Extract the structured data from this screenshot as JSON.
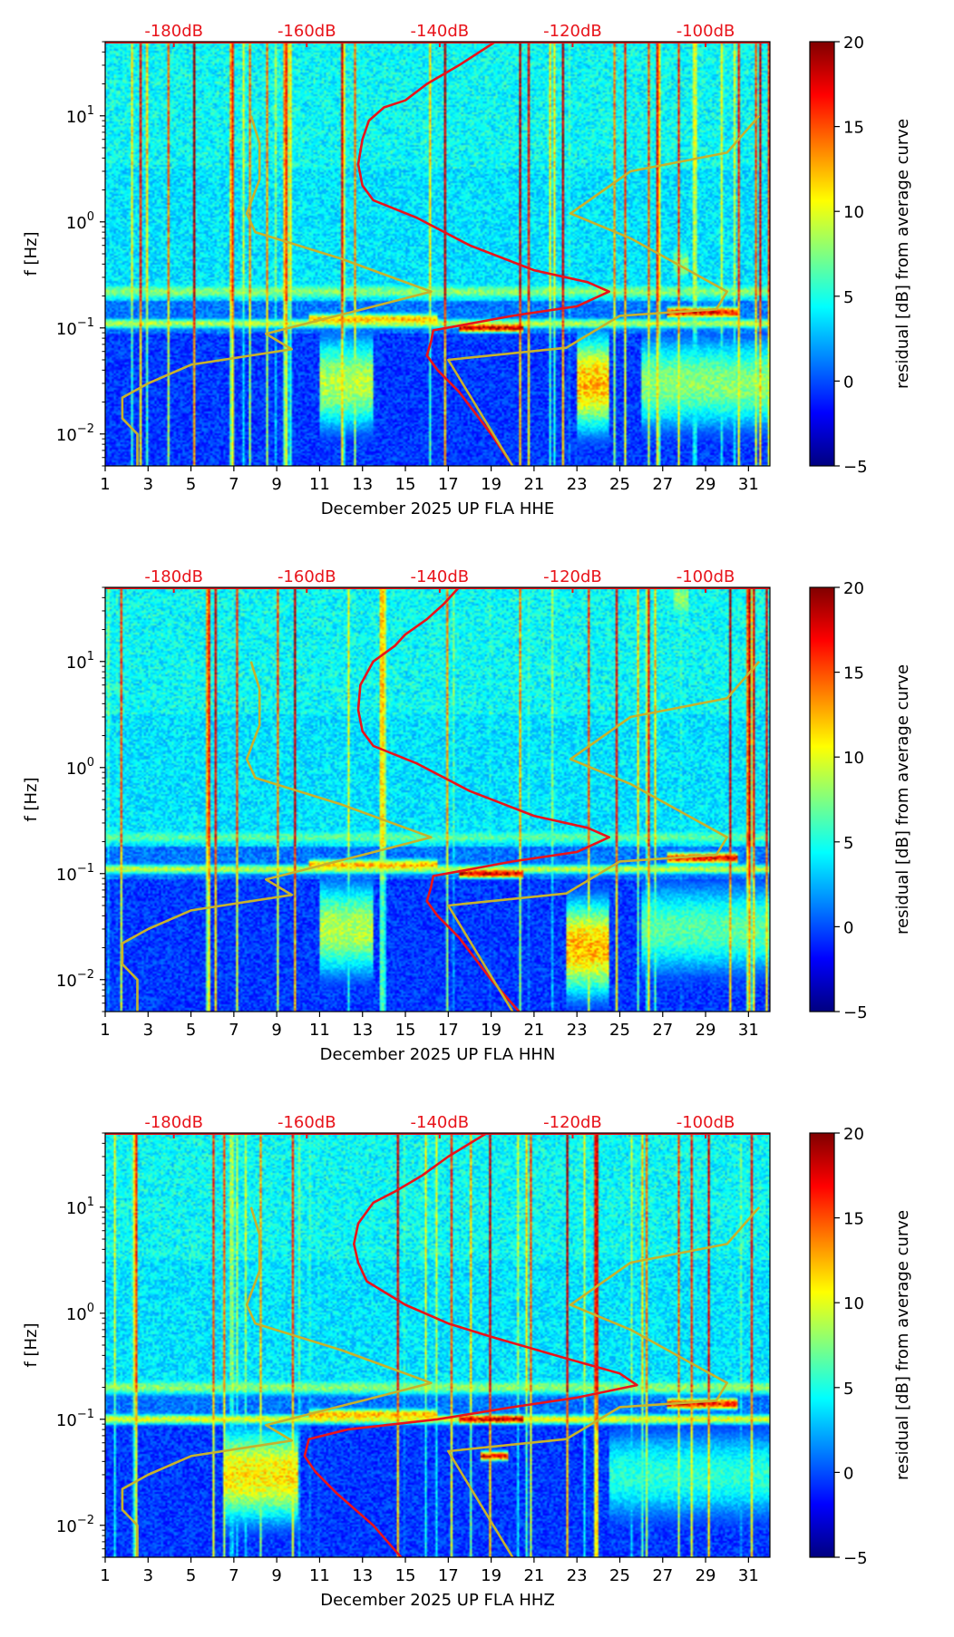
{
  "chart_data": [
    {
      "type": "heatmap",
      "title": "",
      "xlabel": "December 2025 UP FLA  HHE",
      "ylabel": "f [Hz]",
      "xlim": [
        1,
        32
      ],
      "ylim": [
        0.005,
        50
      ],
      "yscale": "log",
      "xticks": [
        1,
        3,
        5,
        7,
        9,
        11,
        13,
        15,
        17,
        19,
        21,
        23,
        25,
        27,
        29,
        31
      ],
      "yticks": [
        {
          "value": 0.01,
          "base": "10",
          "exp": "−2"
        },
        {
          "value": 0.1,
          "base": "10",
          "exp": "−1"
        },
        {
          "value": 1,
          "base": "10",
          "exp": "0"
        },
        {
          "value": 10,
          "base": "10",
          "exp": "1"
        }
      ],
      "db_scale": {
        "labels": [
          "-180dB",
          "-160dB",
          "-140dB",
          "-120dB",
          "-100dB"
        ],
        "x": [
          4.2,
          10.4,
          16.6,
          22.8,
          29.0
        ]
      },
      "colorbar": {
        "label": "residual [dB] from average curve",
        "min": -5,
        "max": 20,
        "ticks": [
          "20",
          "15",
          "10",
          "5",
          "0",
          "−5"
        ]
      },
      "bands": [
        {
          "f": 0.22,
          "width": 0.1,
          "start": 1,
          "end": 32,
          "amp": 0.55
        },
        {
          "f": 0.11,
          "width": 0.06,
          "start": 1,
          "end": 32,
          "amp": 0.6
        },
        {
          "f": 0.1,
          "width": 0.05,
          "start": 17.5,
          "end": 20.5,
          "amp": 1.0
        },
        {
          "f": 0.14,
          "width": 0.06,
          "start": 27.2,
          "end": 30.5,
          "amp": 0.95
        },
        {
          "f": 0.12,
          "width": 0.07,
          "start": 10.5,
          "end": 16.5,
          "amp": 0.75
        },
        {
          "f": 0.03,
          "width": 0.5,
          "start": 23,
          "end": 24.5,
          "amp": 0.75
        },
        {
          "f": 0.03,
          "width": 0.5,
          "start": 11,
          "end": 13.5,
          "amp": 0.6
        },
        {
          "f": 0.03,
          "width": 0.5,
          "start": 26,
          "end": 32,
          "amp": 0.55
        },
        {
          "f": 0.4,
          "width": 0.25,
          "start": 27.5,
          "end": 28.2,
          "amp": 0.55
        }
      ],
      "series": [
        {
          "name": "median PSD",
          "color": "#e8141b",
          "points": [
            [
              19.2,
              50
            ],
            [
              17.5,
              30
            ],
            [
              16,
              20
            ],
            [
              15,
              14
            ],
            [
              14,
              12
            ],
            [
              13.3,
              9
            ],
            [
              13,
              6
            ],
            [
              12.8,
              3.5
            ],
            [
              13,
              2.2
            ],
            [
              13.5,
              1.6
            ],
            [
              15.5,
              1.1
            ],
            [
              18,
              0.6
            ],
            [
              21,
              0.35
            ],
            [
              23.5,
              0.27
            ],
            [
              24.5,
              0.22
            ],
            [
              23,
              0.16
            ],
            [
              20,
              0.13
            ],
            [
              17.5,
              0.105
            ],
            [
              16.3,
              0.095
            ],
            [
              16.2,
              0.075
            ],
            [
              16,
              0.055
            ],
            [
              16.5,
              0.04
            ],
            [
              17.5,
              0.025
            ],
            [
              19,
              0.01
            ],
            [
              20,
              0.005
            ]
          ]
        },
        {
          "name": "low noise model",
          "color": "#c6b22d",
          "points": [
            [
              7.8,
              10
            ],
            [
              8.2,
              5.5
            ],
            [
              8.2,
              2.5
            ],
            [
              7.6,
              1.2
            ],
            [
              8,
              0.8
            ],
            [
              12,
              0.45
            ],
            [
              16.2,
              0.22
            ],
            [
              13,
              0.15
            ],
            [
              8.5,
              0.088
            ],
            [
              9.7,
              0.063
            ],
            [
              5,
              0.045
            ],
            [
              3,
              0.03
            ],
            [
              1.8,
              0.022
            ],
            [
              1.8,
              0.014
            ],
            [
              2.5,
              0.01
            ],
            [
              2.5,
              0.005
            ]
          ]
        },
        {
          "name": "high noise model",
          "color": "#c6b22d",
          "points": [
            [
              31.5,
              10
            ],
            [
              30,
              4.5
            ],
            [
              25.5,
              3
            ],
            [
              22.7,
              1.2
            ],
            [
              25.5,
              0.7
            ],
            [
              30,
              0.22
            ],
            [
              29.5,
              0.15
            ],
            [
              25,
              0.13
            ],
            [
              22.5,
              0.065
            ],
            [
              17,
              0.05
            ],
            [
              20,
              0.005
            ]
          ]
        }
      ]
    },
    {
      "type": "heatmap",
      "title": "",
      "xlabel": "December 2025 UP FLA  HHN",
      "ylabel": "f [Hz]",
      "xlim": [
        1,
        32
      ],
      "ylim": [
        0.005,
        50
      ],
      "yscale": "log",
      "xticks": [
        1,
        3,
        5,
        7,
        9,
        11,
        13,
        15,
        17,
        19,
        21,
        23,
        25,
        27,
        29,
        31
      ],
      "yticks": [
        {
          "value": 0.01,
          "base": "10",
          "exp": "−2"
        },
        {
          "value": 0.1,
          "base": "10",
          "exp": "−1"
        },
        {
          "value": 1,
          "base": "10",
          "exp": "0"
        },
        {
          "value": 10,
          "base": "10",
          "exp": "1"
        }
      ],
      "db_scale": {
        "labels": [
          "-180dB",
          "-160dB",
          "-140dB",
          "-120dB",
          "-100dB"
        ],
        "x": [
          4.2,
          10.4,
          16.6,
          22.8,
          29.0
        ]
      },
      "colorbar": {
        "label": "residual [dB] from average curve",
        "min": -5,
        "max": 20,
        "ticks": [
          "20",
          "15",
          "10",
          "5",
          "0",
          "−5"
        ]
      },
      "bands": [
        {
          "f": 0.22,
          "width": 0.1,
          "start": 1,
          "end": 32,
          "amp": 0.5
        },
        {
          "f": 0.11,
          "width": 0.06,
          "start": 1,
          "end": 32,
          "amp": 0.6
        },
        {
          "f": 0.1,
          "width": 0.05,
          "start": 17.5,
          "end": 20.5,
          "amp": 1.0
        },
        {
          "f": 0.14,
          "width": 0.06,
          "start": 27.2,
          "end": 30.5,
          "amp": 0.95
        },
        {
          "f": 0.12,
          "width": 0.07,
          "start": 10.5,
          "end": 16.5,
          "amp": 0.75
        },
        {
          "f": 0.02,
          "width": 0.5,
          "start": 22.5,
          "end": 24.5,
          "amp": 0.75
        },
        {
          "f": 0.03,
          "width": 0.5,
          "start": 11,
          "end": 13.5,
          "amp": 0.6
        },
        {
          "f": 0.03,
          "width": 0.5,
          "start": 26,
          "end": 32,
          "amp": 0.5
        },
        {
          "f": 40,
          "width": 0.3,
          "start": 27.5,
          "end": 28.2,
          "amp": 0.55
        }
      ],
      "series": [
        {
          "name": "median PSD",
          "color": "#e8141b",
          "points": [
            [
              17.5,
              50
            ],
            [
              16.8,
              35
            ],
            [
              16,
              25
            ],
            [
              15,
              18
            ],
            [
              14.5,
              14
            ],
            [
              13.5,
              10
            ],
            [
              12.9,
              6
            ],
            [
              12.8,
              3.5
            ],
            [
              13,
              2.2
            ],
            [
              13.5,
              1.6
            ],
            [
              15.5,
              1.1
            ],
            [
              18,
              0.6
            ],
            [
              21,
              0.35
            ],
            [
              23.5,
              0.27
            ],
            [
              24.5,
              0.22
            ],
            [
              23,
              0.16
            ],
            [
              20,
              0.13
            ],
            [
              17.5,
              0.105
            ],
            [
              16.3,
              0.095
            ],
            [
              16.2,
              0.075
            ],
            [
              16,
              0.055
            ],
            [
              16.5,
              0.04
            ],
            [
              17.5,
              0.025
            ],
            [
              19,
              0.01
            ],
            [
              20.3,
              0.005
            ]
          ]
        },
        {
          "name": "low noise model",
          "color": "#c6b22d",
          "points": [
            [
              7.8,
              10
            ],
            [
              8.2,
              5.5
            ],
            [
              8.2,
              2.5
            ],
            [
              7.6,
              1.2
            ],
            [
              8,
              0.8
            ],
            [
              12,
              0.45
            ],
            [
              16.2,
              0.22
            ],
            [
              13,
              0.15
            ],
            [
              8.5,
              0.088
            ],
            [
              9.7,
              0.063
            ],
            [
              5,
              0.045
            ],
            [
              3,
              0.03
            ],
            [
              1.8,
              0.022
            ],
            [
              1.8,
              0.014
            ],
            [
              2.5,
              0.01
            ],
            [
              2.5,
              0.005
            ]
          ]
        },
        {
          "name": "high noise model",
          "color": "#c6b22d",
          "points": [
            [
              31.5,
              10
            ],
            [
              30,
              4.5
            ],
            [
              25.5,
              3
            ],
            [
              22.7,
              1.2
            ],
            [
              25.5,
              0.7
            ],
            [
              30,
              0.22
            ],
            [
              29.5,
              0.15
            ],
            [
              25,
              0.13
            ],
            [
              22.5,
              0.065
            ],
            [
              17,
              0.05
            ],
            [
              20,
              0.005
            ]
          ]
        }
      ]
    },
    {
      "type": "heatmap",
      "title": "",
      "xlabel": "December 2025 UP FLA  HHZ",
      "ylabel": "f [Hz]",
      "xlim": [
        1,
        32
      ],
      "ylim": [
        0.005,
        50
      ],
      "yscale": "log",
      "xticks": [
        1,
        3,
        5,
        7,
        9,
        11,
        13,
        15,
        17,
        19,
        21,
        23,
        25,
        27,
        29,
        31
      ],
      "yticks": [
        {
          "value": 0.01,
          "base": "10",
          "exp": "−2"
        },
        {
          "value": 0.1,
          "base": "10",
          "exp": "−1"
        },
        {
          "value": 1,
          "base": "10",
          "exp": "0"
        },
        {
          "value": 10,
          "base": "10",
          "exp": "1"
        }
      ],
      "db_scale": {
        "labels": [
          "-180dB",
          "-160dB",
          "-140dB",
          "-120dB",
          "-100dB"
        ],
        "x": [
          4.2,
          10.4,
          16.6,
          22.8,
          29.0
        ]
      },
      "colorbar": {
        "label": "residual [dB] from average curve",
        "min": -5,
        "max": 20,
        "ticks": [
          "20",
          "15",
          "10",
          "5",
          "0",
          "−5"
        ]
      },
      "bands": [
        {
          "f": 0.2,
          "width": 0.1,
          "start": 1,
          "end": 32,
          "amp": 0.55
        },
        {
          "f": 0.1,
          "width": 0.06,
          "start": 1,
          "end": 32,
          "amp": 0.65
        },
        {
          "f": 0.1,
          "width": 0.05,
          "start": 17.5,
          "end": 20.5,
          "amp": 1.0
        },
        {
          "f": 0.045,
          "width": 0.05,
          "start": 18.5,
          "end": 19.8,
          "amp": 0.95
        },
        {
          "f": 0.14,
          "width": 0.06,
          "start": 27.2,
          "end": 30.5,
          "amp": 0.95
        },
        {
          "f": 0.11,
          "width": 0.07,
          "start": 10.5,
          "end": 16.5,
          "amp": 0.75
        },
        {
          "f": 0.03,
          "width": 0.5,
          "start": 6.5,
          "end": 10,
          "amp": 0.7
        },
        {
          "f": 0.03,
          "width": 0.5,
          "start": 24.5,
          "end": 32,
          "amp": 0.45
        }
      ],
      "series": [
        {
          "name": "median PSD",
          "color": "#e8141b",
          "points": [
            [
              18.8,
              50
            ],
            [
              17,
              30
            ],
            [
              15.8,
              20
            ],
            [
              14.5,
              14
            ],
            [
              13.5,
              11
            ],
            [
              12.8,
              7
            ],
            [
              12.6,
              4.5
            ],
            [
              12.8,
              3
            ],
            [
              13.2,
              2
            ],
            [
              15,
              1.2
            ],
            [
              17,
              0.8
            ],
            [
              19,
              0.6
            ],
            [
              22,
              0.4
            ],
            [
              25,
              0.27
            ],
            [
              25.8,
              0.21
            ],
            [
              23,
              0.16
            ],
            [
              20,
              0.13
            ],
            [
              16.5,
              0.1
            ],
            [
              12.3,
              0.08
            ],
            [
              10.5,
              0.065
            ],
            [
              10.3,
              0.045
            ],
            [
              10.8,
              0.032
            ],
            [
              11.8,
              0.02
            ],
            [
              13.5,
              0.01
            ],
            [
              14.8,
              0.005
            ]
          ]
        },
        {
          "name": "low noise model",
          "color": "#c6b22d",
          "points": [
            [
              7.8,
              10
            ],
            [
              8.2,
              5.5
            ],
            [
              8.2,
              2.5
            ],
            [
              7.6,
              1.2
            ],
            [
              8,
              0.8
            ],
            [
              12,
              0.45
            ],
            [
              16.2,
              0.22
            ],
            [
              13,
              0.15
            ],
            [
              8.5,
              0.088
            ],
            [
              9.7,
              0.063
            ],
            [
              5,
              0.045
            ],
            [
              3,
              0.03
            ],
            [
              1.8,
              0.022
            ],
            [
              1.8,
              0.014
            ],
            [
              2.5,
              0.01
            ],
            [
              2.5,
              0.005
            ]
          ]
        },
        {
          "name": "high noise model",
          "color": "#c6b22d",
          "points": [
            [
              31.5,
              10
            ],
            [
              30,
              4.5
            ],
            [
              25.5,
              3
            ],
            [
              22.7,
              1.2
            ],
            [
              25.5,
              0.7
            ],
            [
              30,
              0.22
            ],
            [
              29.5,
              0.15
            ],
            [
              25,
              0.13
            ],
            [
              22.5,
              0.065
            ],
            [
              17,
              0.05
            ],
            [
              20,
              0.005
            ]
          ]
        }
      ]
    }
  ]
}
